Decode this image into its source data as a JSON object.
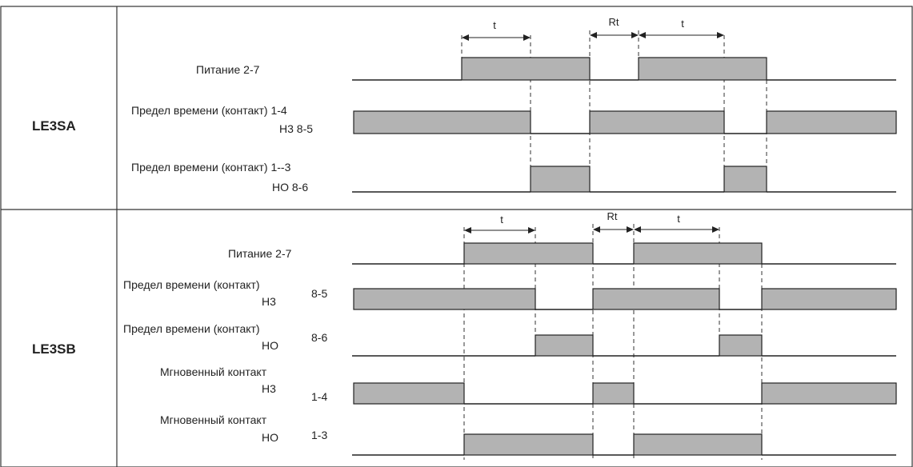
{
  "colors": {
    "high_fill": "#b3b3b3",
    "line": "#222222",
    "frame": "#333333"
  },
  "sections": [
    {
      "model": "LE3SA",
      "label_lines": [
        "Питание   2-7",
        "Предел времени (контакт) 1-4",
        "Н3 8-5",
        "Предел времени (контакт) 1--3",
        "НО  8-6"
      ],
      "spans": [
        "t",
        "Rt",
        "t"
      ]
    },
    {
      "model": "LE3SB",
      "label_lines": [
        "Питание 2-7",
        "Предел времени (контакт)",
        "Н3",
        "8-5",
        "Предел времени (контакт)",
        "НО",
        "8-6",
        "Мгновенный контакт",
        "Н3",
        "1-4",
        "Мгновенный контакт",
        "НО",
        "1-3"
      ],
      "spans": [
        "t",
        "Rt",
        "t"
      ]
    }
  ]
}
